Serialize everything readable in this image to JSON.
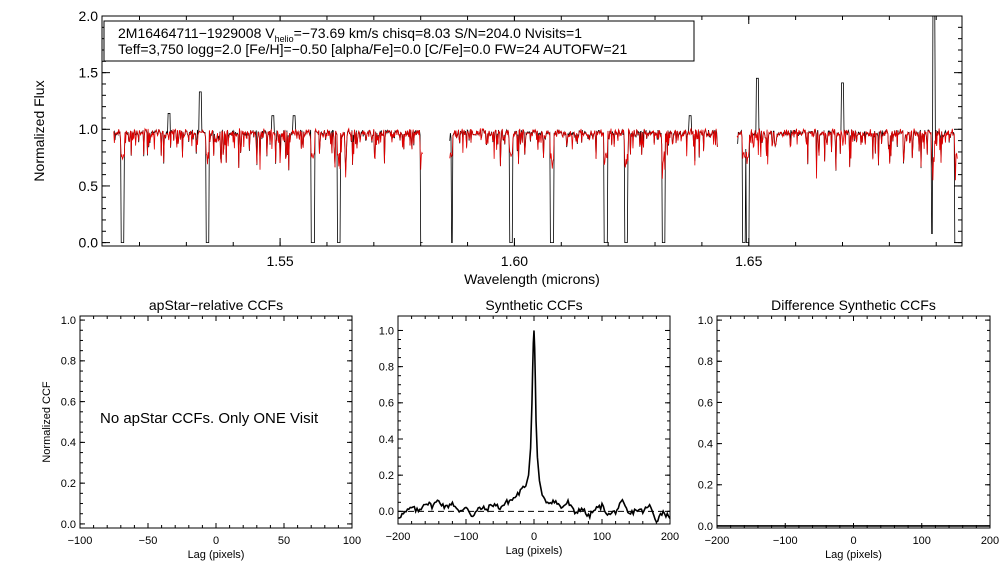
{
  "header": {
    "line1_name": "2M16464711−1929008",
    "line1_v": "V",
    "line1_sub": "helio",
    "line1_rest": "=−73.69 km/s  chisq=8.03  S/N=204.0  Nvisits=1",
    "line2": "Teff=3,750 logg=2.0 [Fe/H]=−0.50 [alpha/Fe]=0.0 [C/Fe]=0.0 FW=24 AUTOFW=21"
  },
  "note": "No apStar CCFs.  Only ONE Visit",
  "colors": {
    "observed": "#000000",
    "model": "#e00000"
  },
  "chart_data": [
    {
      "type": "line",
      "title": "",
      "xlabel": "Wavelength (microns)",
      "ylabel": "Normalized Flux",
      "xlim": [
        1.512,
        1.6955
      ],
      "ylim": [
        -0.03,
        2.0
      ],
      "xticks": [
        1.55,
        1.6,
        1.65
      ],
      "xtick_labels": [
        "1.55",
        "1.60",
        "1.65"
      ],
      "yticks": [
        0.0,
        0.5,
        1.0,
        1.5,
        2.0
      ],
      "ytick_labels": [
        "0.0",
        "0.5",
        "1.0",
        "1.5",
        "2.0"
      ],
      "chips": [
        [
          1.5145,
          1.5804
        ],
        [
          1.5862,
          1.6433
        ],
        [
          1.6475,
          1.6945
        ]
      ],
      "continuum": 0.97,
      "deep_lines": [
        {
          "x": 1.5164,
          "y": 0.0
        },
        {
          "x": 1.5345,
          "y": 0.0
        },
        {
          "x": 1.557,
          "y": 0.0
        },
        {
          "x": 1.5625,
          "y": 0.0
        },
        {
          "x": 1.5803,
          "y": 0.0
        },
        {
          "x": 1.5865,
          "y": 0.0
        },
        {
          "x": 1.5993,
          "y": 0.0
        },
        {
          "x": 1.608,
          "y": 0.0
        },
        {
          "x": 1.6195,
          "y": 0.0
        },
        {
          "x": 1.6238,
          "y": 0.0
        },
        {
          "x": 1.6318,
          "y": 0.0
        },
        {
          "x": 1.649,
          "y": 0.0
        },
        {
          "x": 1.6498,
          "y": 0.0
        },
        {
          "x": 1.6893,
          "y": 0.08
        },
        {
          "x": 1.6942,
          "y": 0.0
        }
      ],
      "emission_spikes": [
        {
          "x": 1.5263,
          "y": 1.14
        },
        {
          "x": 1.533,
          "y": 1.33
        },
        {
          "x": 1.5485,
          "y": 1.12
        },
        {
          "x": 1.553,
          "y": 1.12
        },
        {
          "x": 1.6375,
          "y": 1.12
        },
        {
          "x": 1.6465,
          "y": 1.27
        },
        {
          "x": 1.6518,
          "y": 1.45
        },
        {
          "x": 1.67,
          "y": 1.41
        },
        {
          "x": 1.6895,
          "y": 2.0
        }
      ],
      "series": [
        {
          "name": "",
          "role": "observed",
          "color": "#000000"
        },
        {
          "name": "",
          "role": "model",
          "color": "#e00000"
        }
      ]
    },
    {
      "type": "line",
      "title": "apStar−relative CCFs",
      "xlabel": "Lag (pixels)",
      "ylabel": "Normalized CCF",
      "xlim": [
        -100,
        100
      ],
      "ylim": [
        -0.02,
        1.02
      ],
      "xticks": [
        -100,
        -50,
        0,
        50,
        100
      ],
      "xtick_labels": [
        "−100",
        "−50",
        "0",
        "50",
        "100"
      ],
      "yticks": [
        0.0,
        0.2,
        0.4,
        0.6,
        0.8,
        1.0
      ],
      "ytick_labels": [
        "0.0",
        "0.2",
        "0.4",
        "0.6",
        "0.8",
        "1.0"
      ],
      "series": []
    },
    {
      "type": "line",
      "title": "Synthetic CCFs",
      "xlabel": "Lag (pixels)",
      "ylabel": "",
      "xlim": [
        -200,
        200
      ],
      "ylim": [
        -0.07,
        1.08
      ],
      "xticks": [
        -200,
        -100,
        0,
        100,
        200
      ],
      "xtick_labels": [
        "−200",
        "−100",
        "0",
        "100",
        "200"
      ],
      "yticks": [
        0.0,
        0.2,
        0.4,
        0.6,
        0.8,
        1.0
      ],
      "ytick_labels": [
        "0.0",
        "0.2",
        "0.4",
        "0.6",
        "0.8",
        "1.0"
      ],
      "reference_line": {
        "y": 0.0,
        "style": "dashed"
      },
      "series": [
        {
          "name": "",
          "x": [
            -200,
            -190,
            -180,
            -170,
            -160,
            -150,
            -140,
            -130,
            -120,
            -110,
            -100,
            -90,
            -80,
            -70,
            -60,
            -50,
            -40,
            -30,
            -20,
            -12,
            -8,
            -5,
            -3,
            -2,
            -1,
            0,
            1,
            2,
            3,
            5,
            8,
            12,
            20,
            30,
            40,
            50,
            60,
            70,
            80,
            90,
            100,
            110,
            120,
            130,
            140,
            150,
            160,
            170,
            180,
            190,
            200
          ],
          "y": [
            -0.03,
            -0.01,
            0.02,
            0.0,
            0.05,
            0.03,
            0.06,
            0.02,
            0.05,
            -0.01,
            0.03,
            -0.03,
            0.02,
            0.01,
            0.04,
            0.02,
            0.05,
            0.07,
            0.11,
            0.14,
            0.2,
            0.35,
            0.6,
            0.78,
            0.93,
            1.0,
            0.9,
            0.72,
            0.5,
            0.3,
            0.17,
            0.09,
            0.05,
            0.06,
            0.02,
            0.05,
            -0.01,
            0.02,
            -0.03,
            0.01,
            0.03,
            -0.02,
            0.0,
            0.05,
            -0.02,
            0.01,
            0.0,
            0.03,
            -0.05,
            0.0,
            -0.04
          ]
        }
      ]
    },
    {
      "type": "line",
      "title": "Difference Synthetic CCFs",
      "xlabel": "Lag (pixels)",
      "ylabel": "",
      "xlim": [
        -200,
        200
      ],
      "ylim": [
        -0.01,
        1.02
      ],
      "xticks": [
        -200,
        -100,
        0,
        100,
        200
      ],
      "xtick_labels": [
        "−200",
        "−100",
        "0",
        "100",
        "200"
      ],
      "yticks": [
        0.0,
        0.2,
        0.4,
        0.6,
        0.8,
        1.0
      ],
      "ytick_labels": [
        "0.0",
        "0.2",
        "0.4",
        "0.6",
        "0.8",
        "1.0"
      ],
      "series": [
        {
          "name": "",
          "x": [
            -200,
            200
          ],
          "y": [
            0.0,
            0.0
          ]
        }
      ]
    }
  ]
}
